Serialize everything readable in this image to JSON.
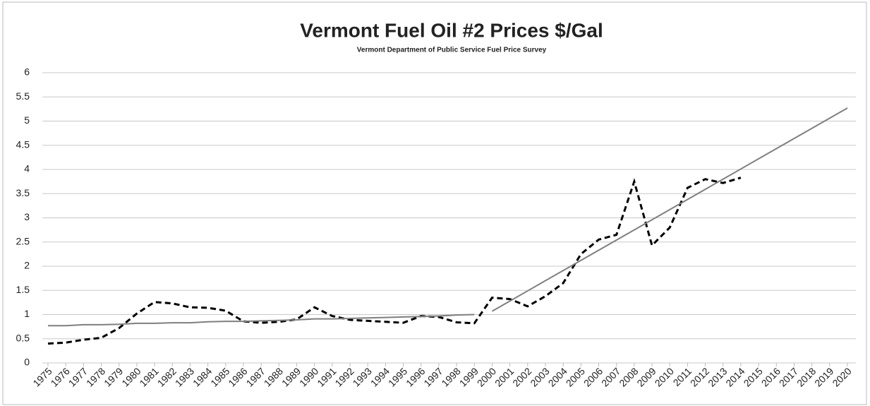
{
  "chart_data": {
    "type": "line",
    "title": "Vermont Fuel Oil #2 Prices $/Gal",
    "subtitle": "Vermont Department of Public Service Fuel Price Survey",
    "x": [
      1975,
      1976,
      1977,
      1978,
      1979,
      1980,
      1981,
      1982,
      1983,
      1984,
      1985,
      1986,
      1987,
      1988,
      1989,
      1990,
      1991,
      1992,
      1993,
      1994,
      1995,
      1996,
      1997,
      1998,
      1999,
      2000,
      2001,
      2002,
      2003,
      2004,
      2005,
      2006,
      2007,
      2008,
      2009,
      2010,
      2011,
      2012,
      2013,
      2014,
      2015,
      2016,
      2017,
      2018,
      2019,
      2020
    ],
    "xlim": [
      1975,
      2020
    ],
    "series": [
      {
        "color": "#000000",
        "dashed": true,
        "values": [
          0.4,
          0.42,
          0.48,
          0.52,
          0.72,
          1.02,
          1.26,
          1.23,
          1.15,
          1.14,
          1.08,
          0.86,
          0.83,
          0.85,
          0.9,
          1.15,
          0.97,
          0.89,
          0.87,
          0.85,
          0.83,
          0.97,
          0.95,
          0.84,
          0.82,
          1.35,
          1.32,
          1.17,
          1.38,
          1.65,
          2.25,
          2.55,
          2.65,
          3.75,
          2.43,
          2.8,
          3.62,
          3.8,
          3.72,
          3.83,
          null,
          null,
          null,
          null,
          null,
          null
        ]
      },
      {
        "color": "#7f7f7f",
        "dashed": false,
        "values": [
          0.77,
          0.77,
          0.79,
          0.79,
          0.8,
          0.82,
          0.82,
          0.83,
          0.83,
          0.85,
          0.86,
          0.86,
          0.87,
          0.88,
          0.89,
          0.91,
          0.91,
          0.92,
          0.93,
          0.94,
          0.95,
          0.96,
          0.97,
          0.99,
          1.0,
          null,
          null,
          null,
          null,
          null,
          null,
          null,
          null,
          null,
          null,
          null,
          null,
          null,
          null,
          null,
          null,
          null,
          null,
          null,
          null,
          null
        ]
      },
      {
        "color": "#7f7f7f",
        "dashed": false,
        "values": [
          null,
          null,
          null,
          null,
          null,
          null,
          null,
          null,
          null,
          null,
          null,
          null,
          null,
          null,
          null,
          null,
          null,
          null,
          null,
          null,
          null,
          null,
          null,
          null,
          null,
          1.07,
          1.28,
          1.49,
          1.7,
          1.91,
          2.12,
          2.33,
          2.54,
          2.75,
          2.96,
          3.17,
          3.38,
          3.59,
          3.8,
          4.01,
          4.22,
          4.43,
          4.64,
          4.85,
          5.06,
          5.27
        ]
      }
    ],
    "ylim": [
      0,
      6
    ],
    "yticks": [
      0,
      0.5,
      1,
      1.5,
      2,
      2.5,
      3,
      3.5,
      4,
      4.5,
      5,
      5.5,
      6
    ],
    "grid": true
  }
}
